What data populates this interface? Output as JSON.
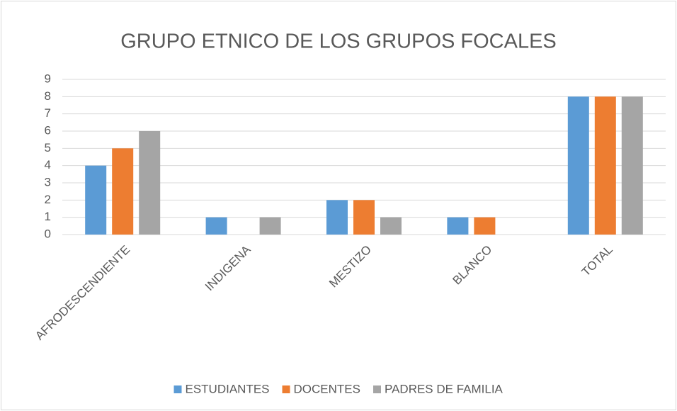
{
  "chart_data": {
    "type": "bar",
    "title": "GRUPO ETNICO DE LOS GRUPOS FOCALES",
    "categories": [
      "AFRODESCENDIENTE",
      "INDIGENA",
      "MESTIZO",
      "BLANCO",
      "TOTAL"
    ],
    "series": [
      {
        "name": "ESTUDIANTES",
        "color": "#5b9bd5",
        "values": [
          4,
          1,
          2,
          1,
          8
        ]
      },
      {
        "name": "DOCENTES",
        "color": "#ed7d31",
        "values": [
          5,
          0,
          2,
          1,
          8
        ]
      },
      {
        "name": "PADRES DE FAMILIA",
        "color": "#a5a5a5",
        "values": [
          6,
          1,
          1,
          0,
          8
        ]
      }
    ],
    "ylim": [
      0,
      9
    ],
    "yticks": [
      0,
      1,
      2,
      3,
      4,
      5,
      6,
      7,
      8,
      9
    ],
    "grid": true,
    "legend": "bottom"
  }
}
